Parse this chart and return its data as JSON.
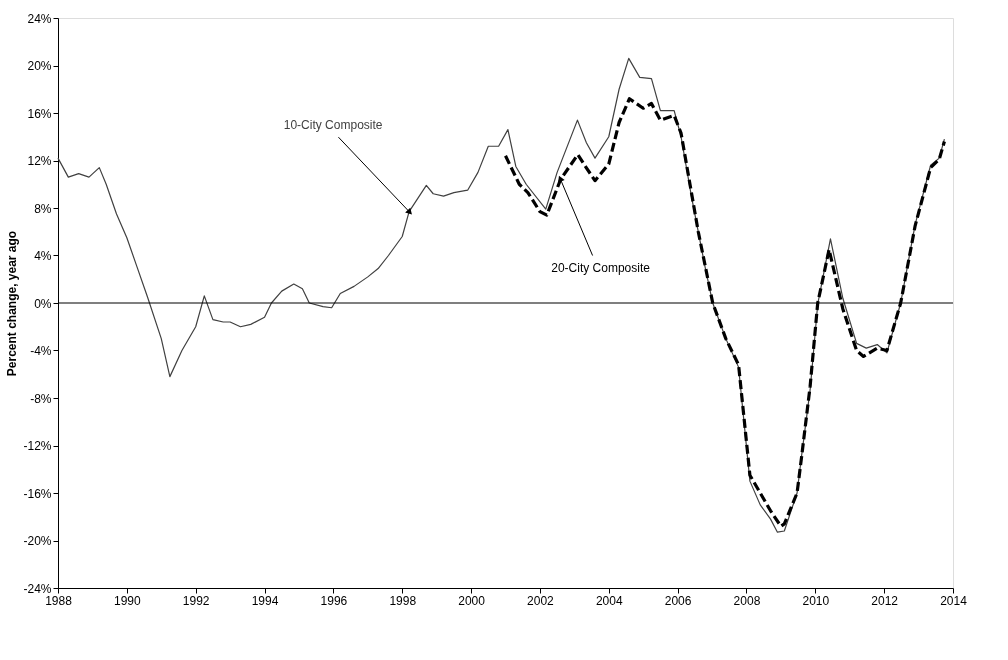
{
  "chart_data": {
    "type": "line",
    "ylabel": "Percent change, year ago",
    "xlim": [
      1988,
      2014
    ],
    "xticks": [
      1988,
      1990,
      1992,
      1994,
      1996,
      1998,
      2000,
      2002,
      2004,
      2006,
      2008,
      2010,
      2012,
      2014
    ],
    "ylim": [
      -24,
      24
    ],
    "yticks": [
      {
        "value": -24,
        "label": "-24%"
      },
      {
        "value": -20,
        "label": "-20%"
      },
      {
        "value": -16,
        "label": "-16%"
      },
      {
        "value": -12,
        "label": "-12%"
      },
      {
        "value": -8,
        "label": "-8%"
      },
      {
        "value": -4,
        "label": "-4%"
      },
      {
        "value": 0,
        "label": "0%"
      },
      {
        "value": 4,
        "label": "4%"
      },
      {
        "value": 8,
        "label": "8%"
      },
      {
        "value": 12,
        "label": "12%"
      },
      {
        "value": 16,
        "label": "16%"
      },
      {
        "value": 20,
        "label": "20%"
      },
      {
        "value": 24,
        "label": "24%"
      }
    ],
    "grid": false,
    "legend": false,
    "series": [
      {
        "name": "10-City Composite",
        "color": "#404040",
        "line_style": "solid",
        "x": [
          1988.0,
          1988.3,
          1988.6,
          1988.9,
          1989.2,
          1989.4,
          1989.7,
          1990.0,
          1990.3,
          1990.6,
          1991.0,
          1991.25,
          1991.6,
          1992.0,
          1992.25,
          1992.5,
          1992.8,
          1993.0,
          1993.3,
          1993.6,
          1994.0,
          1994.2,
          1994.5,
          1994.85,
          1995.1,
          1995.3,
          1995.7,
          1995.95,
          1996.2,
          1996.6,
          1997.0,
          1997.3,
          1997.6,
          1998.0,
          1998.2,
          1998.7,
          1998.9,
          1999.2,
          1999.5,
          1999.9,
          2000.2,
          2000.5,
          2000.8,
          2001.07,
          2001.3,
          2001.6,
          2002.17,
          2002.5,
          2003.09,
          2003.35,
          2003.6,
          2004.0,
          2004.3,
          2004.58,
          2004.9,
          2005.24,
          2005.5,
          2005.9,
          2006.1,
          2006.4,
          2006.8,
          2007.02,
          2007.4,
          2007.77,
          2008.1,
          2008.4,
          2008.7,
          2008.9,
          2009.1,
          2009.47,
          2009.6,
          2009.85,
          2010.07,
          2010.44,
          2010.8,
          2011.2,
          2011.48,
          2011.8,
          2012.08,
          2012.48,
          2012.9,
          2013.35,
          2013.6,
          2013.75
        ],
        "values": [
          12.2,
          10.6,
          10.9,
          10.6,
          11.4,
          10.0,
          7.5,
          5.5,
          3.0,
          0.5,
          -3.0,
          -6.2,
          -4.0,
          -2.0,
          0.6,
          -1.4,
          -1.6,
          -1.6,
          -2.0,
          -1.8,
          -1.2,
          0.0,
          1.0,
          1.6,
          1.2,
          0.0,
          -0.3,
          -0.4,
          0.8,
          1.4,
          2.2,
          2.9,
          4.0,
          5.6,
          7.7,
          9.9,
          9.2,
          9.0,
          9.3,
          9.5,
          11.0,
          13.2,
          13.2,
          14.6,
          11.5,
          10.0,
          7.9,
          11.0,
          15.4,
          13.5,
          12.2,
          14.0,
          18.0,
          20.6,
          19.0,
          18.9,
          16.2,
          16.2,
          14.0,
          9.0,
          3.0,
          0.0,
          -3.0,
          -5.4,
          -15.0,
          -17.0,
          -18.2,
          -19.3,
          -19.2,
          -16.0,
          -12.9,
          -7.3,
          -0.1,
          5.4,
          0.4,
          -3.4,
          -3.8,
          -3.5,
          -4.2,
          0.0,
          6.6,
          11.6,
          12.2,
          13.8
        ]
      },
      {
        "name": "20-City Composite",
        "color": "#000000",
        "line_style": "dashed",
        "x": [
          2001.0,
          2001.4,
          2001.65,
          2002.0,
          2002.2,
          2002.6,
          2003.1,
          2003.3,
          2003.6,
          2004.0,
          2004.3,
          2004.6,
          2005.0,
          2005.24,
          2005.5,
          2005.9,
          2006.1,
          2006.6,
          2007.02,
          2007.4,
          2007.77,
          2008.1,
          2008.4,
          2008.7,
          2009.0,
          2009.1,
          2009.47,
          2009.6,
          2009.85,
          2010.07,
          2010.4,
          2010.8,
          2011.2,
          2011.4,
          2011.8,
          2012.08,
          2012.48,
          2012.9,
          2013.35,
          2013.6,
          2013.75
        ],
        "values": [
          12.4,
          10.0,
          9.3,
          7.7,
          7.4,
          10.4,
          12.5,
          11.6,
          10.3,
          11.7,
          15.2,
          17.2,
          16.4,
          16.8,
          15.4,
          15.8,
          14.3,
          6.0,
          0.0,
          -3.0,
          -5.2,
          -14.5,
          -16.0,
          -17.5,
          -18.8,
          -18.6,
          -16.0,
          -13.0,
          -7.0,
          0.0,
          4.5,
          -0.5,
          -4.0,
          -4.5,
          -3.8,
          -4.0,
          0.0,
          6.5,
          11.4,
          12.1,
          13.6
        ]
      }
    ],
    "ref_lines": [
      {
        "axis": "y",
        "value": 0,
        "color": "#000000",
        "line_style": "solid"
      }
    ]
  }
}
